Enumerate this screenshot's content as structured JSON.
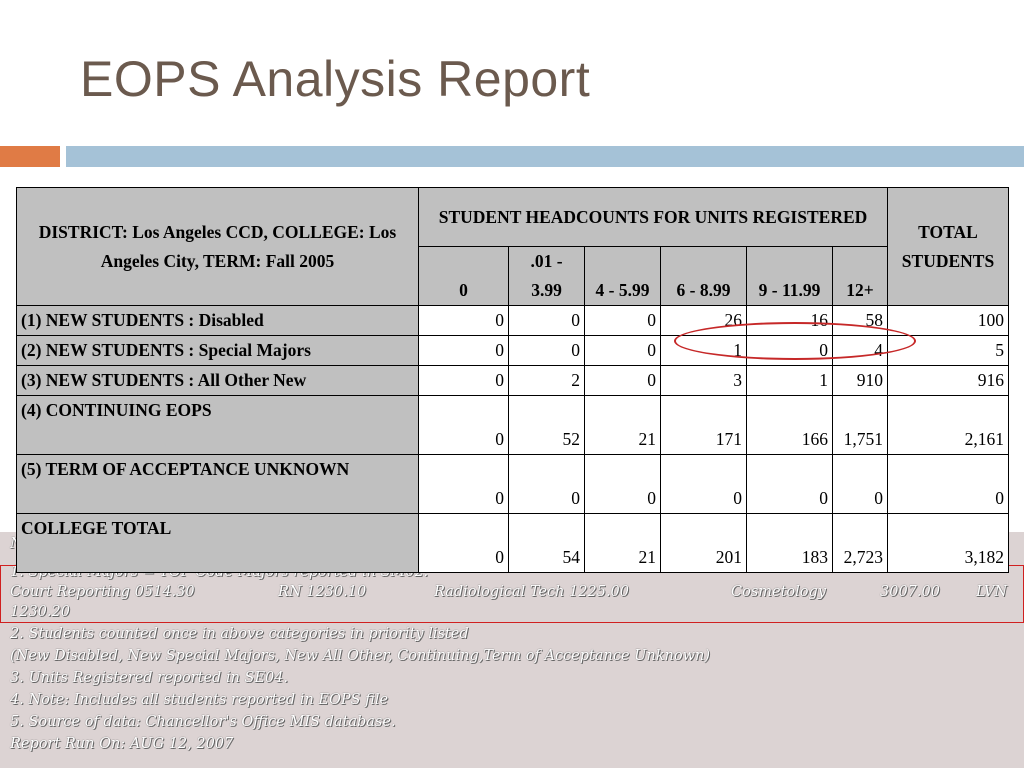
{
  "title": "EOPS Analysis Report",
  "table": {
    "corner": "DISTRICT: Los Angeles CCD, COLLEGE: Los Angeles City, TERM: Fall 2005",
    "group_header": "STUDENT HEADCOUNTS FOR UNITS REGISTERED",
    "total_header": "TOTAL STUDENTS",
    "columns": [
      "0",
      ".01 - 3.99",
      "4 - 5.99",
      "6 - 8.99",
      "9 - 11.99",
      "12+"
    ],
    "rows": [
      {
        "label": "(1)  NEW STUDENTS  :  Disabled",
        "values": [
          "0",
          "0",
          "0",
          "26",
          "16",
          "58"
        ],
        "total": "100"
      },
      {
        "label": "(2)  NEW STUDENTS  :  Special Majors",
        "values": [
          "0",
          "0",
          "0",
          "1",
          "0",
          "4"
        ],
        "total": "5"
      },
      {
        "label": "(3)  NEW STUDENTS  :  All Other New",
        "values": [
          "0",
          "2",
          "0",
          "3",
          "1",
          "910"
        ],
        "total": "916"
      },
      {
        "label": "(4)  CONTINUING EOPS",
        "values": [
          "0",
          "52",
          "21",
          "171",
          "166",
          "1,751"
        ],
        "total": "2,161"
      },
      {
        "label": "(5)  TERM OF ACCEPTANCE UNKNOWN",
        "values": [
          "0",
          "0",
          "0",
          "0",
          "0",
          "0"
        ],
        "total": "0"
      },
      {
        "label": "COLLEGE TOTAL",
        "values": [
          "0",
          "54",
          "21",
          "201",
          "183",
          "2,723"
        ],
        "total": "3,182"
      }
    ]
  },
  "notes": {
    "hidden_prefix": "N",
    "special_majors": "1. Special Majors = TOP Code Majors reported in SM02:",
    "majors": [
      "Court Reporting   0514.30",
      "RN 1230.10",
      "Radiological Tech      1225.00",
      "Cosmetology",
      "3007.00",
      "LVN"
    ],
    "majors_cont": "1230.20",
    "lines": [
      "2. Students counted once in above categories in priority listed",
      "(New Disabled, New Special Majors, New All Other, Continuing,Term of Acceptance Unknown)",
      "3. Units Registered reported in SE04.",
      "4. Note: Includes all students reported in EOPS file",
      "5. Source of data: Chancellor's Office MIS database.",
      "Report Run On: AUG 12, 2007"
    ]
  }
}
